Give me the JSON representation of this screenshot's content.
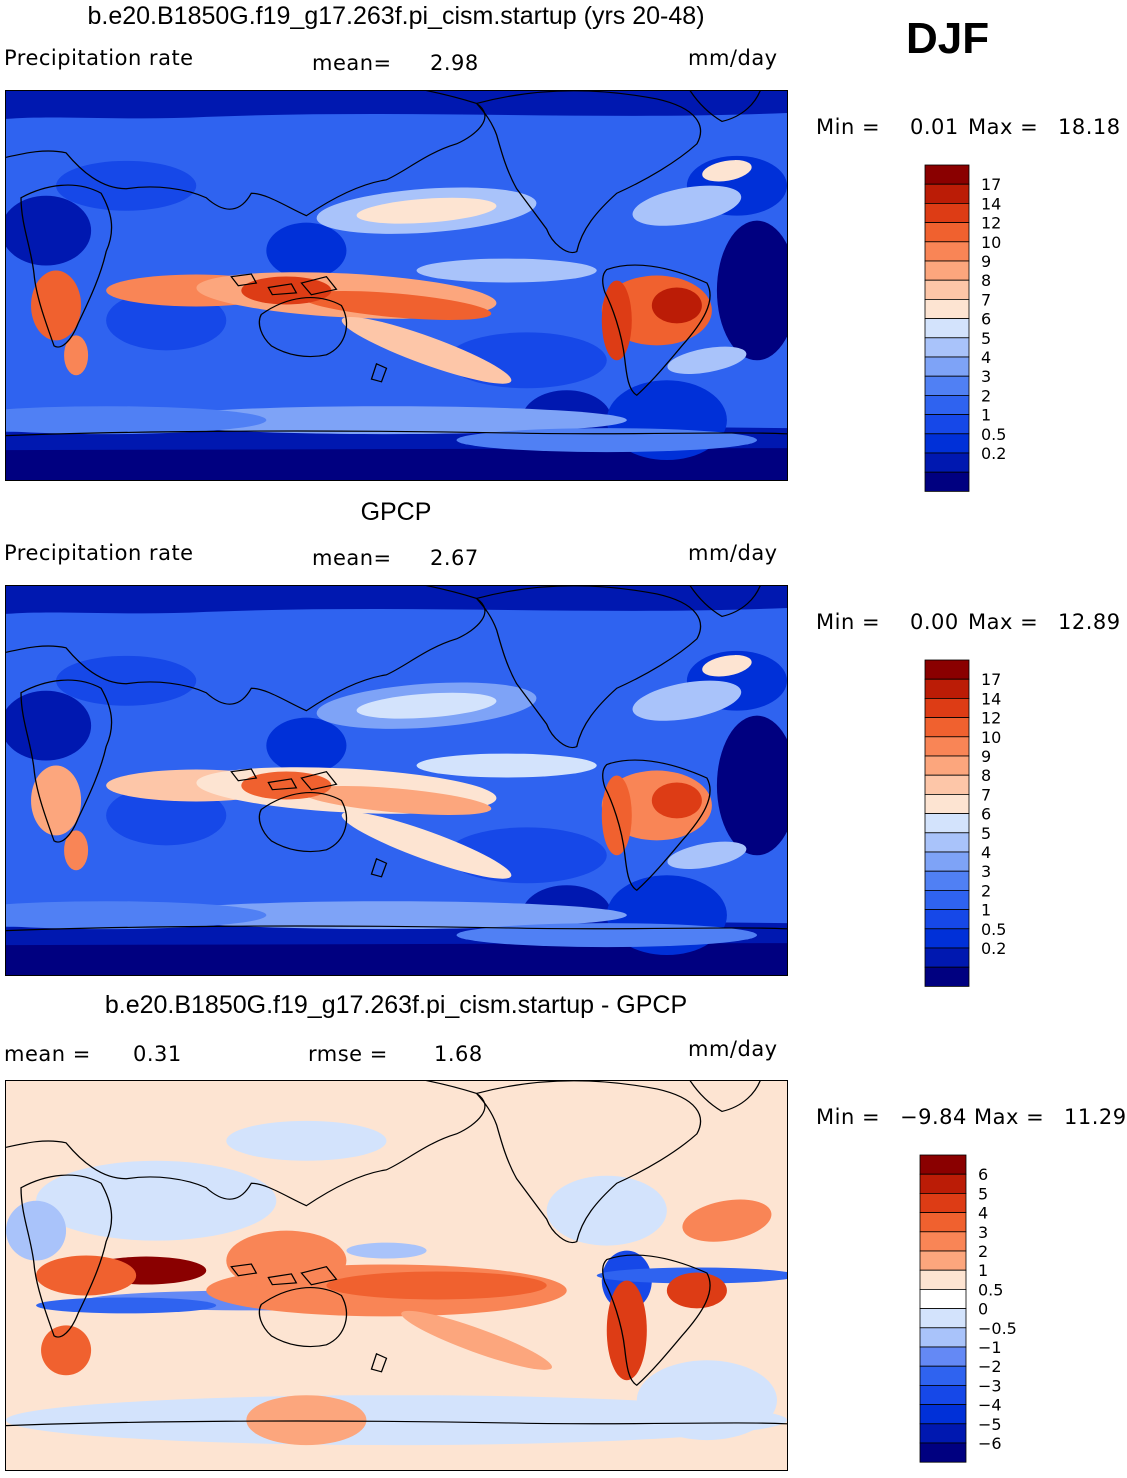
{
  "season": "DJF",
  "colors": {
    "abs": [
      "#000080",
      "#0018b0",
      "#0030d8",
      "#1648e8",
      "#2f63f0",
      "#5080f4",
      "#7ea3f7",
      "#a9c3fa",
      "#d3e3fc",
      "#fde4d2",
      "#fdc6a8",
      "#fca67d",
      "#f98556",
      "#f0612f",
      "#dd3c15",
      "#bb1c06",
      "#8a0000"
    ],
    "diff": [
      "#000080",
      "#0018b0",
      "#0030d8",
      "#1648e8",
      "#2f63f0",
      "#6489f5",
      "#a9c3fa",
      "#d3e3fc",
      "#ffffff",
      "#fde4d2",
      "#fca67d",
      "#f98556",
      "#f0612f",
      "#dd3c15",
      "#bb1c06",
      "#8a0000"
    ]
  },
  "panels": [
    {
      "title": "b.e20.B1850G.f19_g17.263f.pi_cism.startup (yrs 20-48)",
      "left_label": "Precipitation  rate",
      "mean_label": "mean=",
      "mean_value": "2.98",
      "units": "mm/day",
      "min_label": "Min  =",
      "min_value": "0.01",
      "max_label": "Max  =",
      "max_value": "18.18",
      "chart_data": {
        "type": "heatmap",
        "projection": "global cylindrical equidistant, centered on the Pacific",
        "variable": "Precipitation rate",
        "units": "mm/day",
        "mean": 2.98,
        "min": 0.01,
        "max": 18.18,
        "contour_levels": [
          0.2,
          0.5,
          1,
          2,
          3,
          4,
          5,
          6,
          7,
          8,
          9,
          10,
          12,
          14,
          17
        ],
        "colorbar_labels": [
          "17",
          "14",
          "12",
          "10",
          "9",
          "8",
          "7",
          "6",
          "5",
          "4",
          "3",
          "2",
          "1",
          "0.5",
          "0.2"
        ]
      }
    },
    {
      "title": "GPCP",
      "left_label": "Precipitation  rate",
      "mean_label": "mean=",
      "mean_value": "2.67",
      "units": "mm/day",
      "min_label": "Min  =",
      "min_value": "0.00",
      "max_label": "Max  =",
      "max_value": "12.89",
      "chart_data": {
        "type": "heatmap",
        "projection": "global cylindrical equidistant, centered on the Pacific",
        "variable": "Precipitation rate",
        "units": "mm/day",
        "mean": 2.67,
        "min": 0.0,
        "max": 12.89,
        "contour_levels": [
          0.2,
          0.5,
          1,
          2,
          3,
          4,
          5,
          6,
          7,
          8,
          9,
          10,
          12,
          14,
          17
        ],
        "colorbar_labels": [
          "17",
          "14",
          "12",
          "10",
          "9",
          "8",
          "7",
          "6",
          "5",
          "4",
          "3",
          "2",
          "1",
          "0.5",
          "0.2"
        ]
      }
    },
    {
      "title": "b.e20.B1850G.f19_g17.263f.pi_cism.startup - GPCP",
      "mean_label": "mean =",
      "mean_value": "0.31",
      "rmse_label": "rmse =",
      "rmse_value": "1.68",
      "units": "mm/day",
      "min_label": "Min  =",
      "min_value": "−9.84",
      "max_label": "Max  =",
      "max_value": "11.29",
      "chart_data": {
        "type": "heatmap",
        "projection": "global cylindrical equidistant, centered on the Pacific",
        "units": "mm/day",
        "mean": 0.31,
        "rmse": 1.68,
        "min": -9.84,
        "max": 11.29,
        "contour_levels": [
          -6,
          -5,
          -4,
          -3,
          -2,
          -1,
          -0.5,
          0,
          0.5,
          1,
          2,
          3,
          4,
          5,
          6
        ],
        "colorbar_labels": [
          "6",
          "5",
          "4",
          "3",
          "2",
          "1",
          "0.5",
          "0",
          "−0.5",
          "−1",
          "−2",
          "−3",
          "−4",
          "−5",
          "−6"
        ]
      }
    }
  ]
}
